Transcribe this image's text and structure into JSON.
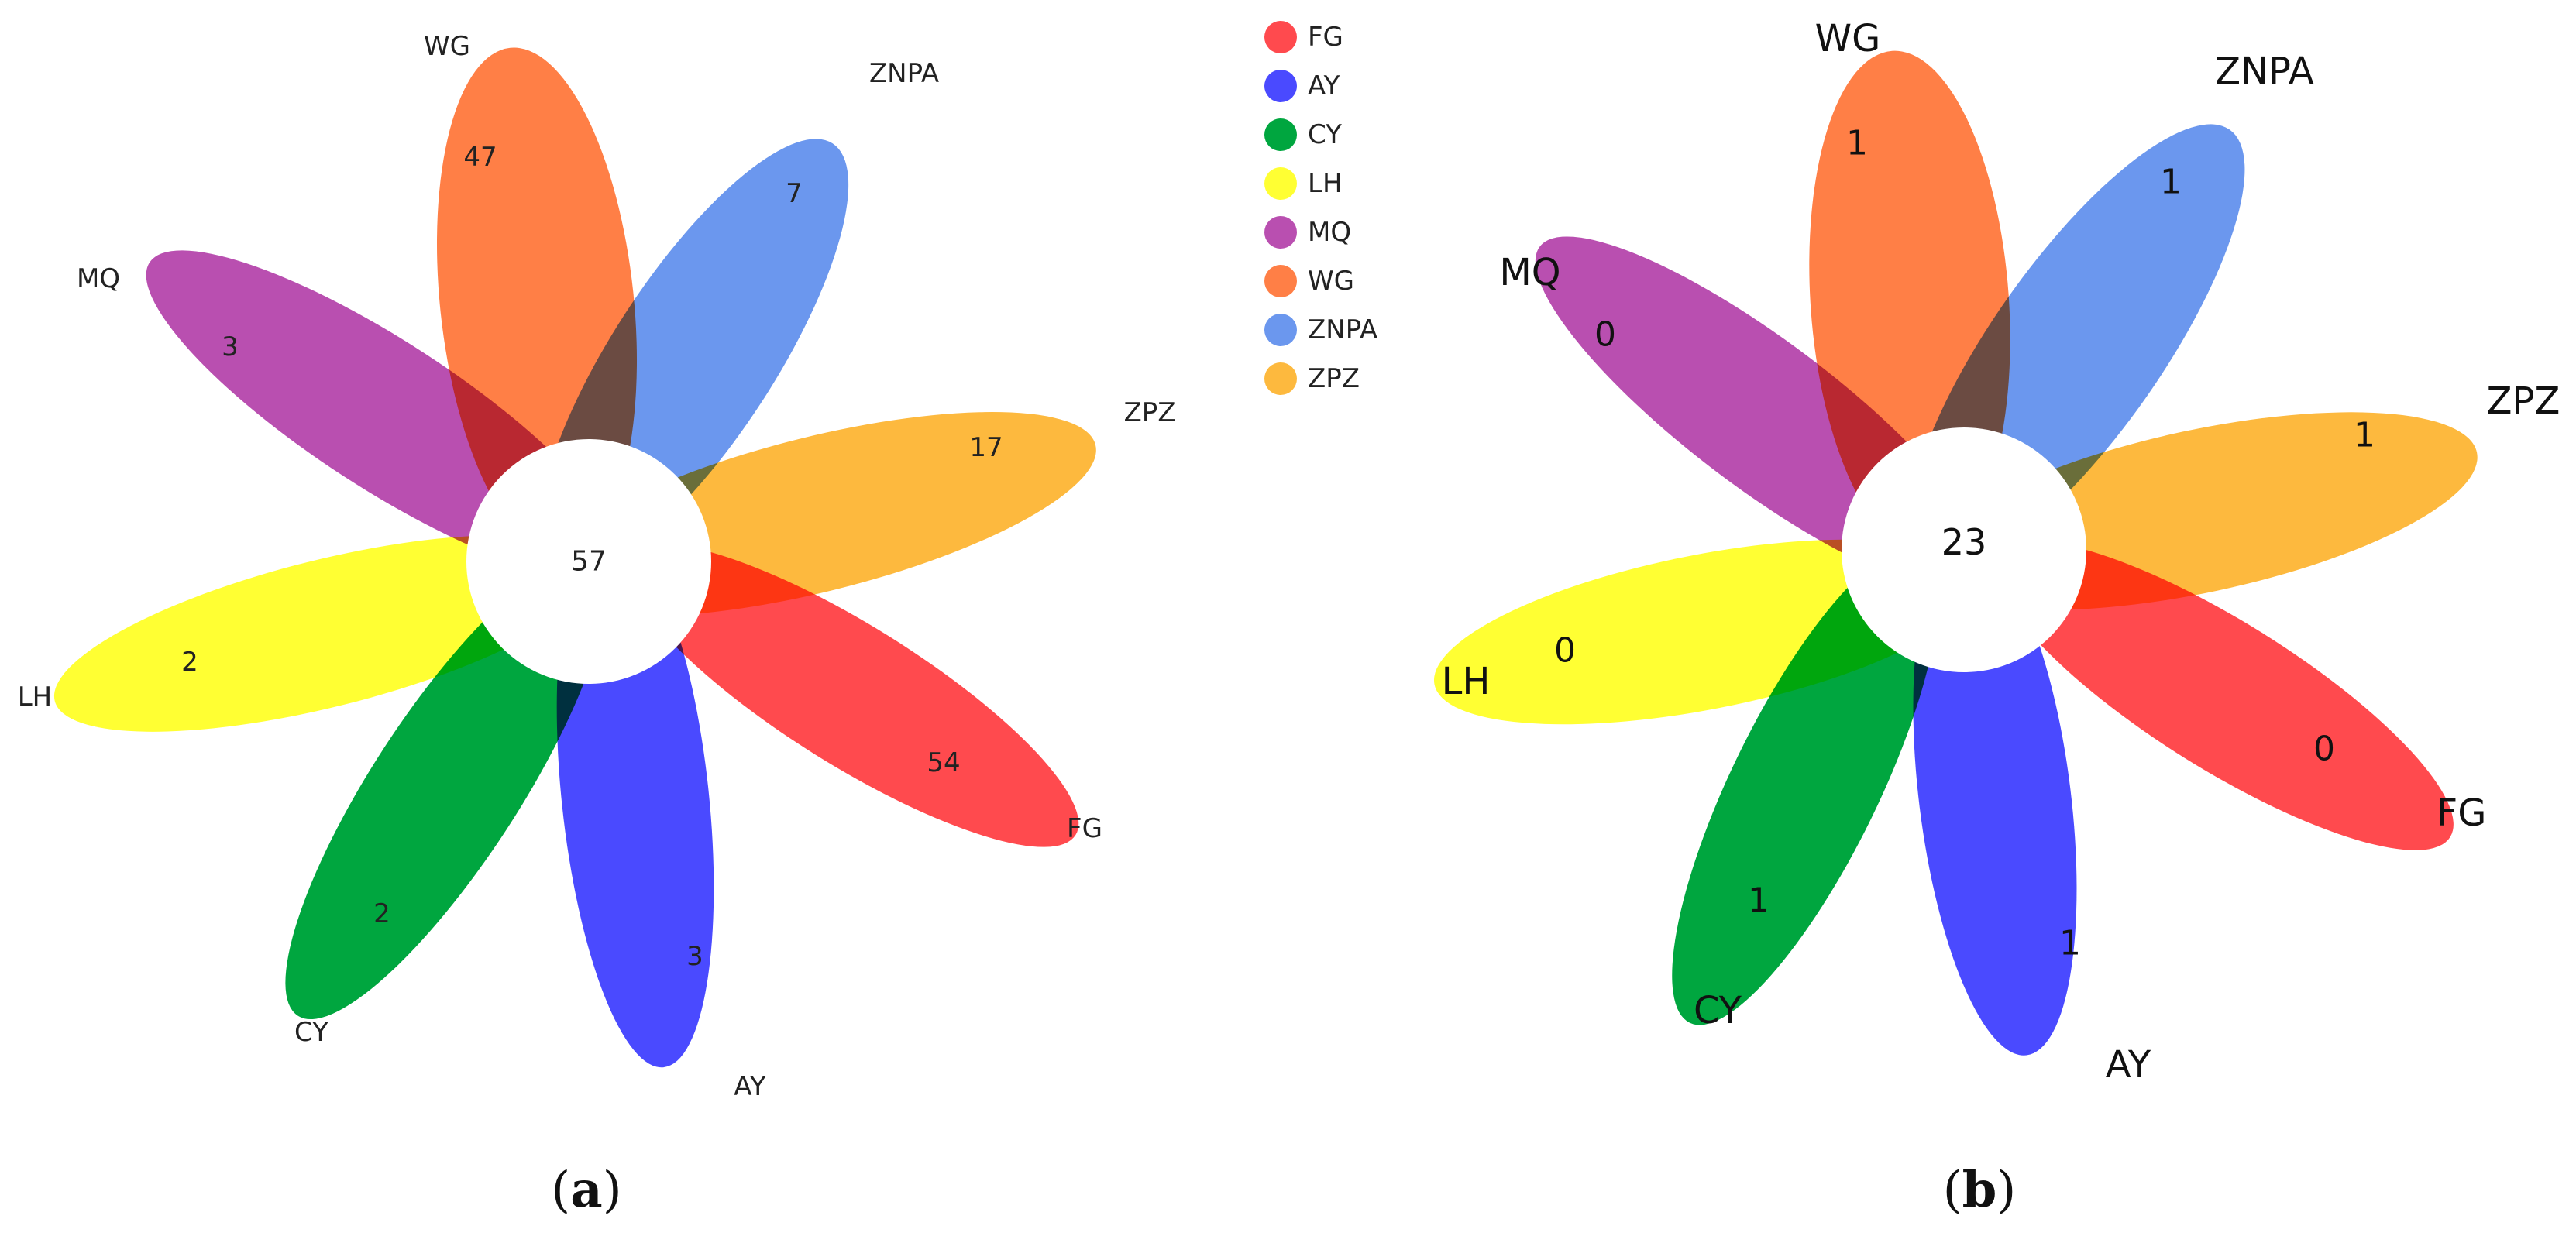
{
  "panels": [
    {
      "id": "a",
      "caption_open": "(",
      "caption_letter": "a",
      "caption_close": ")",
      "core_value": "57",
      "petals": [
        {
          "group": "FG",
          "count": "54",
          "color": "#ff4a4e"
        },
        {
          "group": "AY",
          "count": "3",
          "color": "#4a4aff"
        },
        {
          "group": "CY",
          "count": "2",
          "color": "#00a63f"
        },
        {
          "group": "LH",
          "count": "2",
          "color": "#ffff33"
        },
        {
          "group": "MQ",
          "count": "3",
          "color": "#b94fb0"
        },
        {
          "group": "WG",
          "count": "47",
          "color": "#ff7f46"
        },
        {
          "group": "ZNPA",
          "count": "7",
          "color": "#6b97ee"
        },
        {
          "group": "ZPZ",
          "count": "17",
          "color": "#fdb93e"
        }
      ]
    },
    {
      "id": "b",
      "caption_open": "(",
      "caption_letter": "b",
      "caption_close": ")",
      "core_value": "23",
      "petals": [
        {
          "group": "FG",
          "count": "0",
          "color": "#ff4a4e"
        },
        {
          "group": "AY",
          "count": "1",
          "color": "#4a4aff"
        },
        {
          "group": "CY",
          "count": "1",
          "color": "#00a63f"
        },
        {
          "group": "LH",
          "count": "0",
          "color": "#ffff33"
        },
        {
          "group": "MQ",
          "count": "0",
          "color": "#b94fb0"
        },
        {
          "group": "WG",
          "count": "1",
          "color": "#ff7f46"
        },
        {
          "group": "ZNPA",
          "count": "1",
          "color": "#6b97ee"
        },
        {
          "group": "ZPZ",
          "count": "1",
          "color": "#fdb93e"
        }
      ]
    }
  ],
  "legend": [
    {
      "label": "FG",
      "color": "#ff4a4e"
    },
    {
      "label": "AY",
      "color": "#4a4aff"
    },
    {
      "label": "CY",
      "color": "#00a63f"
    },
    {
      "label": "LH",
      "color": "#ffff33"
    },
    {
      "label": "MQ",
      "color": "#b94fb0"
    },
    {
      "label": "WG",
      "color": "#ff7f46"
    },
    {
      "label": "ZNPA",
      "color": "#6b97ee"
    },
    {
      "label": "ZPZ",
      "color": "#fdb93e"
    }
  ]
}
